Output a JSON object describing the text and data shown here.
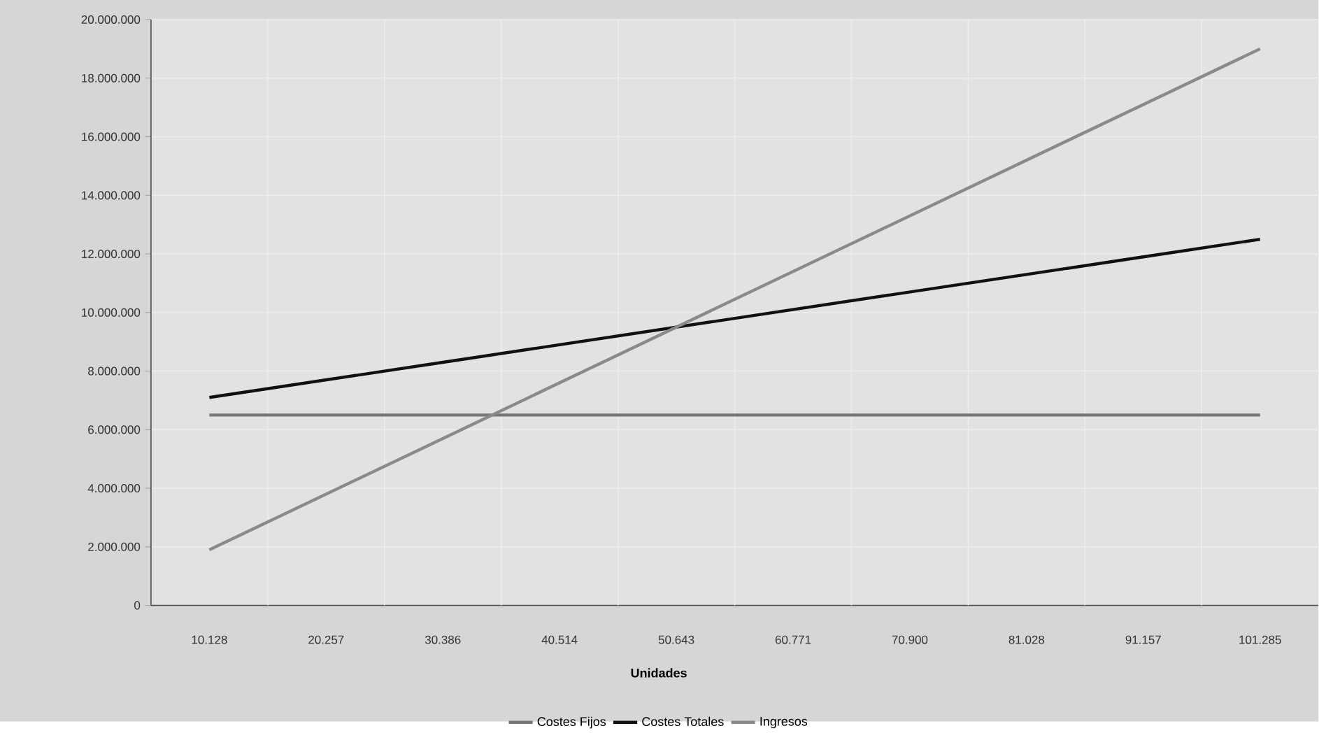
{
  "chart_data": {
    "type": "line",
    "xlabel": "Unidades",
    "categories": [
      "10.128",
      "20.257",
      "30.386",
      "40.514",
      "50.643",
      "60.771",
      "70.900",
      "81.028",
      "91.157",
      "101.285"
    ],
    "series": [
      {
        "name": "Costes Fijos",
        "color": "#777777",
        "values": [
          6500000,
          6500000,
          6500000,
          6500000,
          6500000,
          6500000,
          6500000,
          6500000,
          6500000,
          6500000
        ]
      },
      {
        "name": "Costes Totales",
        "color": "#111111",
        "values": [
          7100000,
          7700000,
          8300000,
          8900000,
          9500000,
          10100000,
          10700000,
          11300000,
          11900000,
          12500000
        ]
      },
      {
        "name": "Ingresos",
        "color": "#8a8a8a",
        "values": [
          1900000,
          3800000,
          5700000,
          7600000,
          9500000,
          11400000,
          13300000,
          15200000,
          17100000,
          19000000
        ]
      }
    ],
    "ylim": [
      0,
      20000000
    ],
    "yticks": [
      {
        "value": 0,
        "label": "0"
      },
      {
        "value": 2000000,
        "label": "2.000.000"
      },
      {
        "value": 4000000,
        "label": "4.000.000"
      },
      {
        "value": 6000000,
        "label": "6.000.000"
      },
      {
        "value": 8000000,
        "label": "8.000.000"
      },
      {
        "value": 10000000,
        "label": "10.000.000"
      },
      {
        "value": 12000000,
        "label": "12.000.000"
      },
      {
        "value": 14000000,
        "label": "14.000.000"
      },
      {
        "value": 16000000,
        "label": "16.000.000"
      },
      {
        "value": 18000000,
        "label": "18.000.000"
      },
      {
        "value": 20000000,
        "label": "20.000.000"
      }
    ],
    "grid": true,
    "legend": "bottom",
    "marker": "none",
    "line_style": "solid"
  }
}
